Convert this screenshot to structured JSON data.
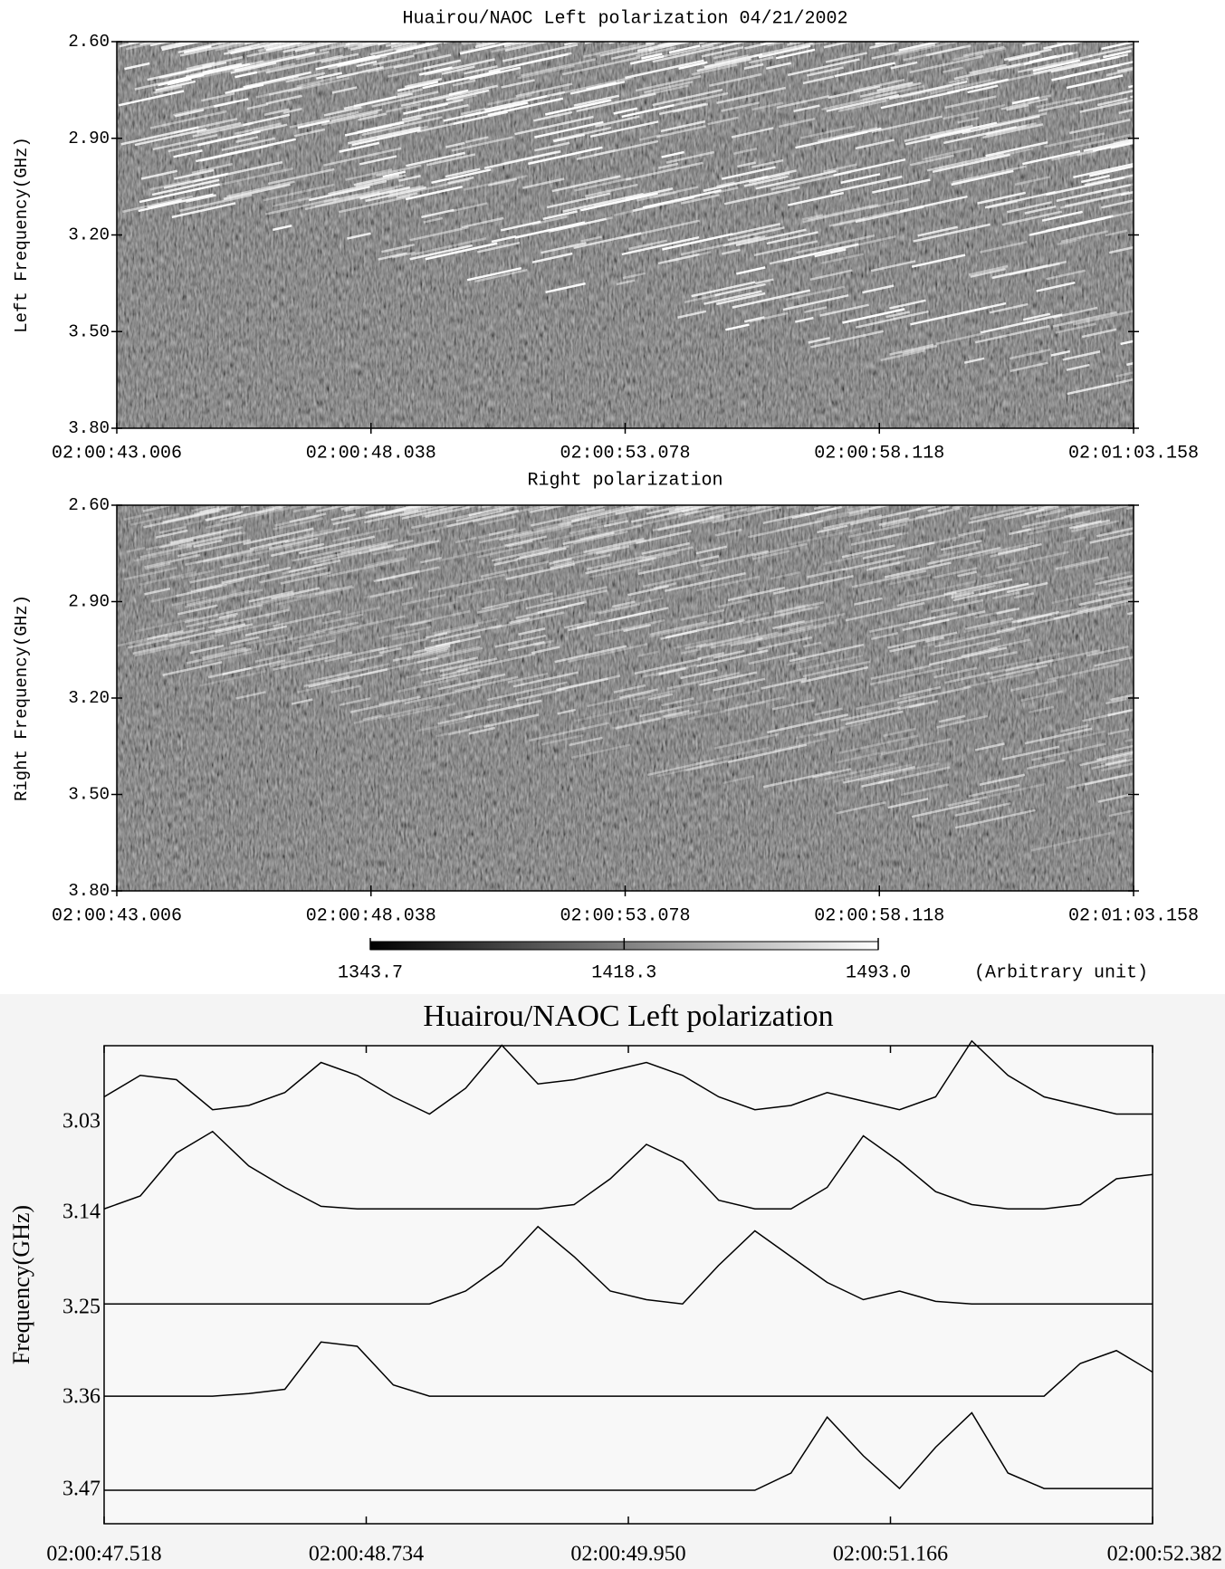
{
  "chart_data": [
    {
      "type": "heatmap",
      "title": "Huairou/NAOC  Left polarization  04/21/2002",
      "ylabel": "Left Frequency(GHz)",
      "ylim": [
        2.6,
        3.8
      ],
      "yticks": [
        {
          "value": 2.6,
          "label": "2.60"
        },
        {
          "value": 2.9,
          "label": "2.90"
        },
        {
          "value": 3.2,
          "label": "3.20"
        },
        {
          "value": 3.5,
          "label": "3.50"
        },
        {
          "value": 3.8,
          "label": "3.80"
        }
      ],
      "xticks": [
        "02:00:43.006",
        "02:00:48.038",
        "02:00:53.078",
        "02:00:58.118",
        "02:01:03.158"
      ]
    },
    {
      "type": "heatmap",
      "title": "Right polarization",
      "ylabel": "Right Frequency(GHz)",
      "ylim": [
        2.6,
        3.8
      ],
      "yticks": [
        {
          "value": 2.6,
          "label": "2.60"
        },
        {
          "value": 2.9,
          "label": "2.90"
        },
        {
          "value": 3.2,
          "label": "3.20"
        },
        {
          "value": 3.5,
          "label": "3.50"
        },
        {
          "value": 3.8,
          "label": "3.80"
        }
      ],
      "xticks": [
        "02:00:43.006",
        "02:00:48.038",
        "02:00:53.078",
        "02:00:58.118",
        "02:01:03.158"
      ]
    },
    {
      "type": "colorbar",
      "clim": [
        1343.7,
        1493.0
      ],
      "ticks": [
        1343.7,
        1418.3,
        {
          "value": 1493.0,
          "label": "1493.0"
        }
      ],
      "label": "(Arbitrary unit)"
    },
    {
      "type": "line",
      "title": "Huairou/NAOC    Left polarization",
      "ylabel": "Frequency(GHz)",
      "xticks": [
        "02:00:47.518",
        "02:00:48.734",
        "02:00:49.950",
        "02:00:51.166",
        "02:00:52.382"
      ],
      "series": [
        {
          "name": "3.03",
          "values": [
            0.3,
            0.55,
            0.5,
            0.15,
            0.2,
            0.35,
            0.7,
            0.55,
            0.3,
            0.1,
            0.4,
            0.9,
            0.45,
            0.5,
            0.6,
            0.7,
            0.55,
            0.3,
            0.15,
            0.2,
            0.35,
            0.25,
            0.15,
            0.3,
            0.95,
            0.55,
            0.3,
            0.2,
            0.1,
            0.1
          ]
        },
        {
          "name": "3.14",
          "values": [
            0.05,
            0.2,
            0.7,
            0.95,
            0.55,
            0.3,
            0.08,
            0.05,
            0.05,
            0.05,
            0.05,
            0.05,
            0.05,
            0.1,
            0.4,
            0.8,
            0.6,
            0.15,
            0.05,
            0.05,
            0.3,
            0.9,
            0.6,
            0.25,
            0.1,
            0.05,
            0.05,
            0.1,
            0.4,
            0.45
          ]
        },
        {
          "name": "3.25",
          "values": [
            0.05,
            0.05,
            0.05,
            0.05,
            0.05,
            0.05,
            0.05,
            0.05,
            0.05,
            0.05,
            0.2,
            0.5,
            0.95,
            0.6,
            0.2,
            0.1,
            0.05,
            0.5,
            0.9,
            0.6,
            0.3,
            0.1,
            0.2,
            0.08,
            0.05,
            0.05,
            0.05,
            0.05,
            0.05,
            0.05
          ]
        },
        {
          "name": "3.36",
          "values": [
            0.02,
            0.02,
            0.02,
            0.02,
            0.05,
            0.1,
            0.65,
            0.6,
            0.15,
            0.02,
            0.02,
            0.02,
            0.02,
            0.02,
            0.02,
            0.02,
            0.02,
            0.02,
            0.02,
            0.02,
            0.02,
            0.02,
            0.02,
            0.02,
            0.02,
            0.02,
            0.02,
            0.4,
            0.55,
            0.3
          ]
        },
        {
          "name": "3.47",
          "values": [
            0,
            0,
            0,
            0,
            0,
            0,
            0,
            0,
            0,
            0,
            0,
            0,
            0,
            0,
            0,
            0,
            0,
            0,
            0,
            0.2,
            0.85,
            0.4,
            0.02,
            0.5,
            0.9,
            0.2,
            0.02,
            0.02,
            0.02,
            0.02
          ]
        }
      ]
    }
  ]
}
